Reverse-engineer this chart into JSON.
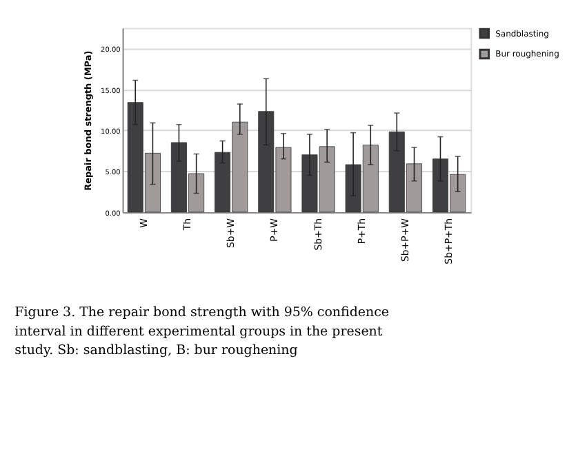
{
  "chart_data": {
    "type": "bar",
    "ylabel": "Repair bond strength (MPa)",
    "categories": [
      "W",
      "Th",
      "Sb+W",
      "P+W",
      "Sb+Th",
      "P+Th",
      "Sb+P+W",
      "Sb+P+Th"
    ],
    "series": [
      {
        "name": "Sandblasting",
        "color": "#3f3f42",
        "values": [
          13.4,
          8.5,
          7.3,
          12.3,
          7.0,
          5.8,
          9.8,
          6.5
        ],
        "errors": [
          [
            10.7,
            16.1
          ],
          [
            6.2,
            10.7
          ],
          [
            6.0,
            8.7
          ],
          [
            8.2,
            16.3
          ],
          [
            4.5,
            9.5
          ],
          [
            2.0,
            9.7
          ],
          [
            7.5,
            12.1
          ],
          [
            3.8,
            9.2
          ]
        ]
      },
      {
        "name": "Bur roughening",
        "color": "#a09a9a",
        "values": [
          7.2,
          4.7,
          11.0,
          7.9,
          8.0,
          8.2,
          5.9,
          4.6
        ],
        "errors": [
          [
            3.4,
            10.9
          ],
          [
            2.3,
            7.1
          ],
          [
            9.5,
            13.2
          ],
          [
            6.5,
            9.6
          ],
          [
            6.1,
            10.1
          ],
          [
            5.8,
            10.6
          ],
          [
            3.8,
            7.9
          ],
          [
            2.5,
            6.8
          ]
        ]
      }
    ],
    "ylim": [
      0,
      22.5
    ],
    "yticks": [
      {
        "value": 0,
        "label": "0.00"
      },
      {
        "value": 5,
        "label": "5.00"
      },
      {
        "value": 10,
        "label": "10.00"
      },
      {
        "value": 15,
        "label": "15.00"
      },
      {
        "value": 20,
        "label": "20.00"
      }
    ],
    "grid": "y",
    "legend": "top right",
    "annotations": [
      "Figure 3. The repair bond strength with 95% confidence interval in different experimental groups in the present study. Sb: sandblasting, B: bur roughening"
    ]
  }
}
